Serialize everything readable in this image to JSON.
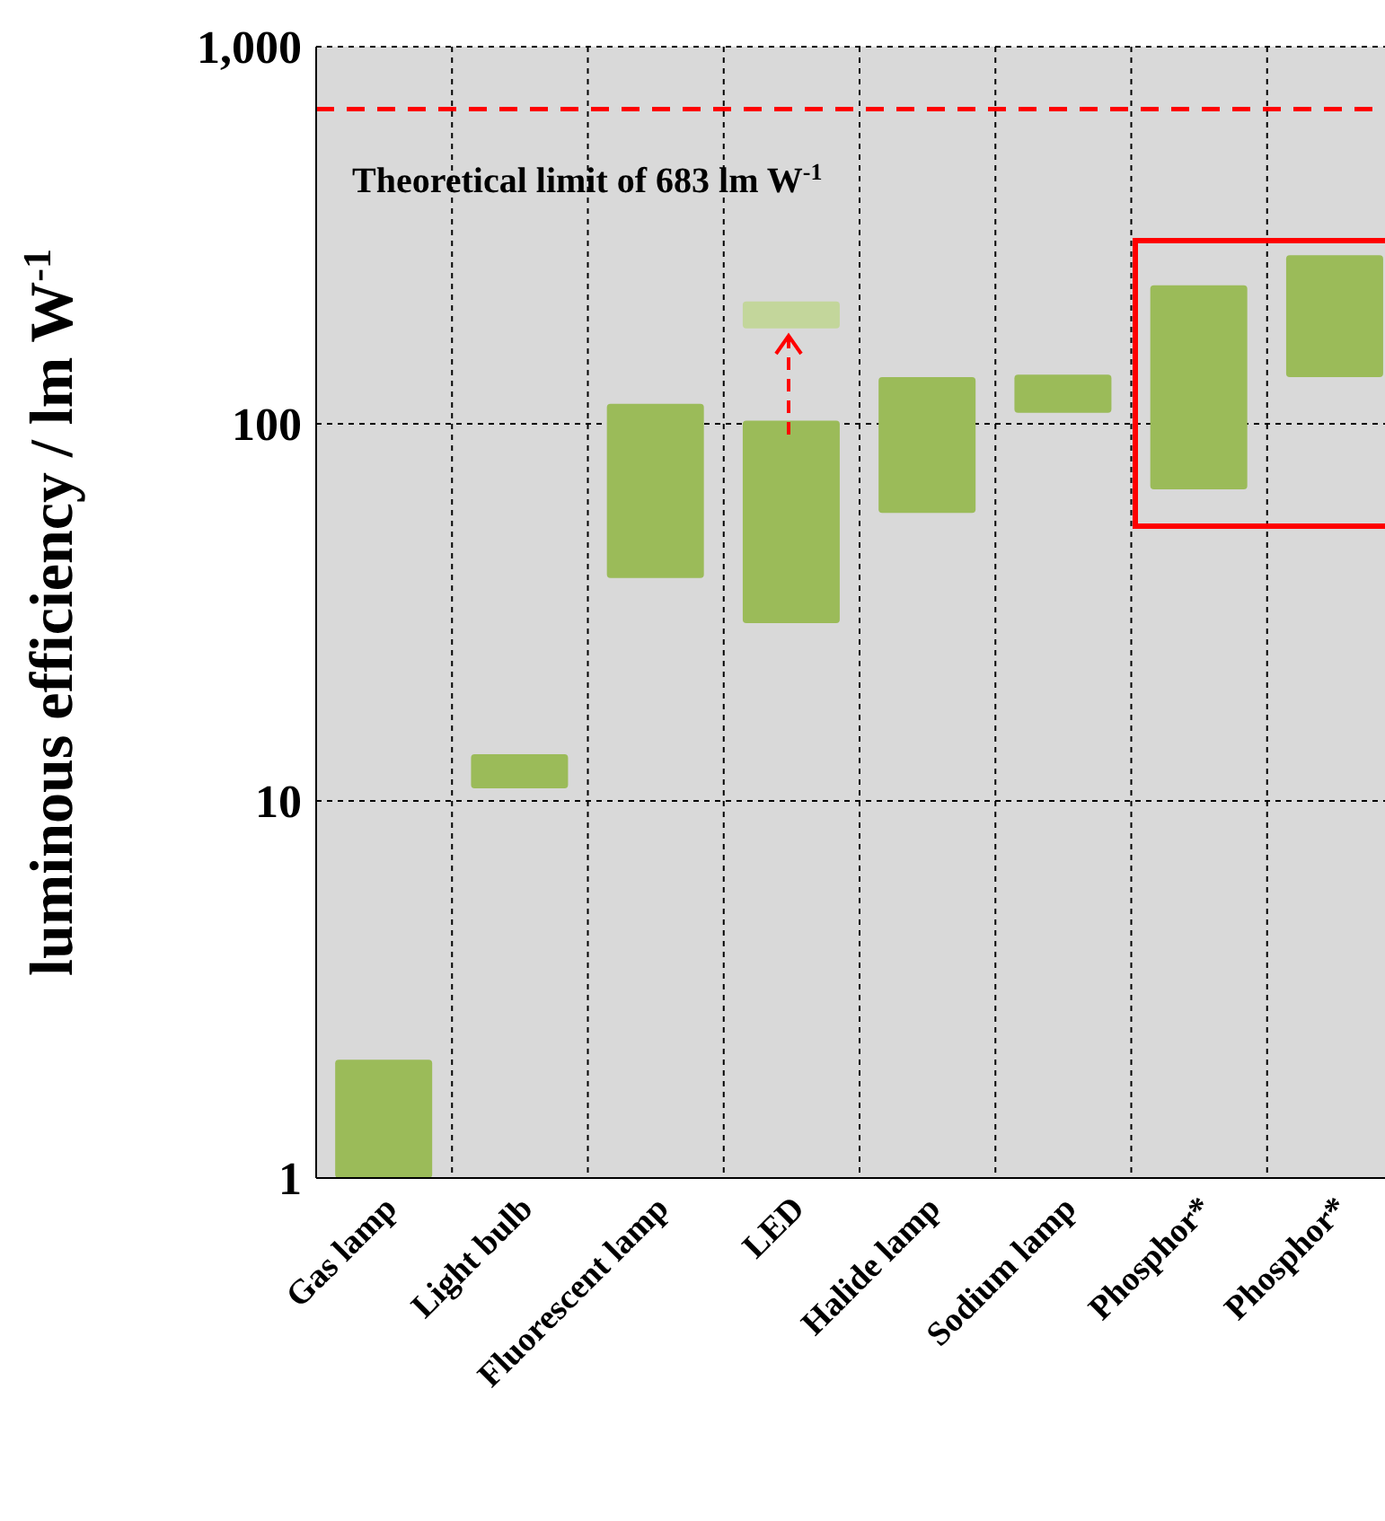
{
  "chart_data": {
    "type": "bar",
    "ylabel": "luminous efficiency / lm W$^{-1}$",
    "categories": [
      "Gas lamp",
      "Light bulb",
      "Fluorescent lamp",
      "LED",
      "Halide lamp",
      "Sodium lamp",
      "Phosphor*",
      "Phosphor*"
    ],
    "series": [
      {
        "color": "#9bbb59",
        "base": [
          1,
          10.8,
          39,
          29.6,
          58,
          107,
          67,
          133
        ],
        "values": [
          1.06,
          2.5,
          74,
          72.4,
          75,
          28,
          166,
          147
        ]
      },
      {
        "color": "#c3d69b",
        "base": [
          null,
          null,
          null,
          179,
          null,
          null,
          null,
          null
        ],
        "values": [
          null,
          null,
          null,
          32,
          null,
          null,
          null,
          null
        ]
      }
    ],
    "log": true,
    "ylim": [
      1,
      1000
    ],
    "yticks": [
      1,
      10,
      100,
      {
        "value": 1000,
        "label": "1,000"
      }
    ],
    "grid": true,
    "ref_lines": [
      {
        "axis": "y",
        "value": 683,
        "label": "Theoretical  limit of 683 lm W$^{-1}$",
        "color": "#ff0000",
        "line_style": "dashed"
      }
    ]
  }
}
